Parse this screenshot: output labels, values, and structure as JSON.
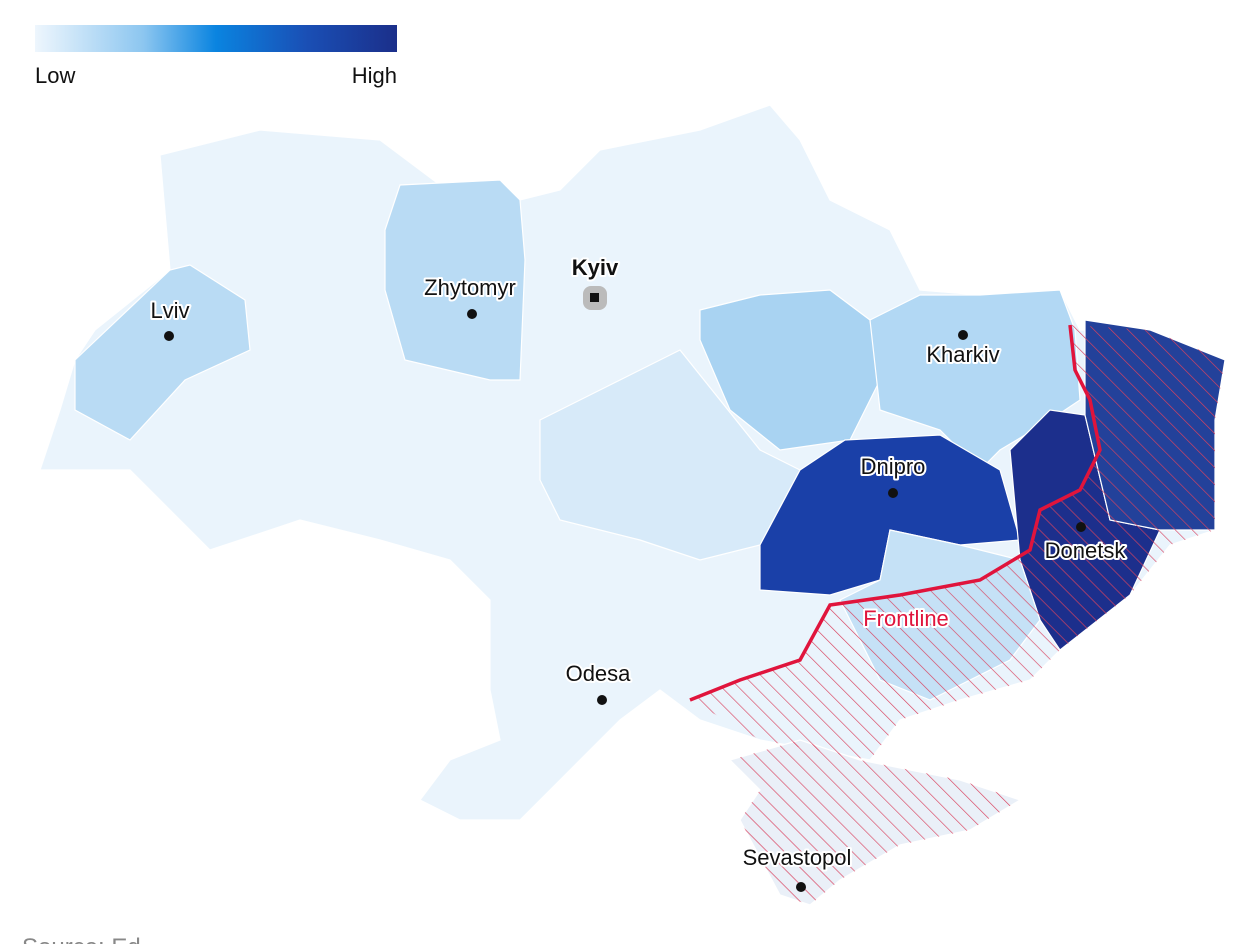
{
  "legend": {
    "low": "Low",
    "high": "High"
  },
  "cities": [
    {
      "name": "Kyiv"
    },
    {
      "name": "Zhytomyr"
    },
    {
      "name": "Lviv"
    },
    {
      "name": "Kharkiv"
    },
    {
      "name": "Dnipro"
    },
    {
      "name": "Donetsk"
    },
    {
      "name": "Odesa"
    },
    {
      "name": "Sevastopol"
    }
  ],
  "frontline": "Frontline",
  "source": "Source: Ed"
}
